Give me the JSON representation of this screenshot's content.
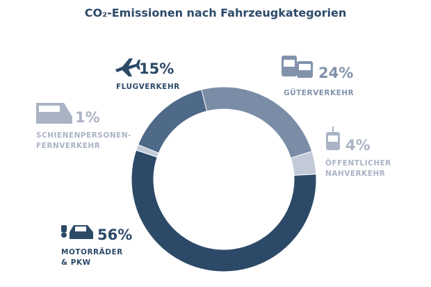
{
  "chart_data": {
    "type": "donut",
    "title": "CO₂-Emissionen nach Fahrzeugkategorien",
    "categories": [
      [
        "GÜTERVERKEHR"
      ],
      [
        "ÖFFENTLICHER",
        "NAHVERKEHR"
      ],
      [
        "MOTORRÄDER",
        "& PKW"
      ],
      [
        "SCHIENENPERSONEN-",
        "FERNVERKEHR"
      ],
      [
        "FLUGVERKEHR"
      ]
    ],
    "values": [
      24,
      4,
      56,
      1,
      15
    ],
    "value_labels": [
      "24%",
      "4%",
      "56%",
      "1%",
      "15%"
    ],
    "colors": [
      "#7b8ca6",
      "#c3cad7",
      "#2c4a68",
      "#c3cad7",
      "#4f6988"
    ],
    "label_colors": [
      "#8292ab",
      "#aab3c4",
      "#2c4a68",
      "#aab3c4",
      "#2c4a68"
    ]
  }
}
